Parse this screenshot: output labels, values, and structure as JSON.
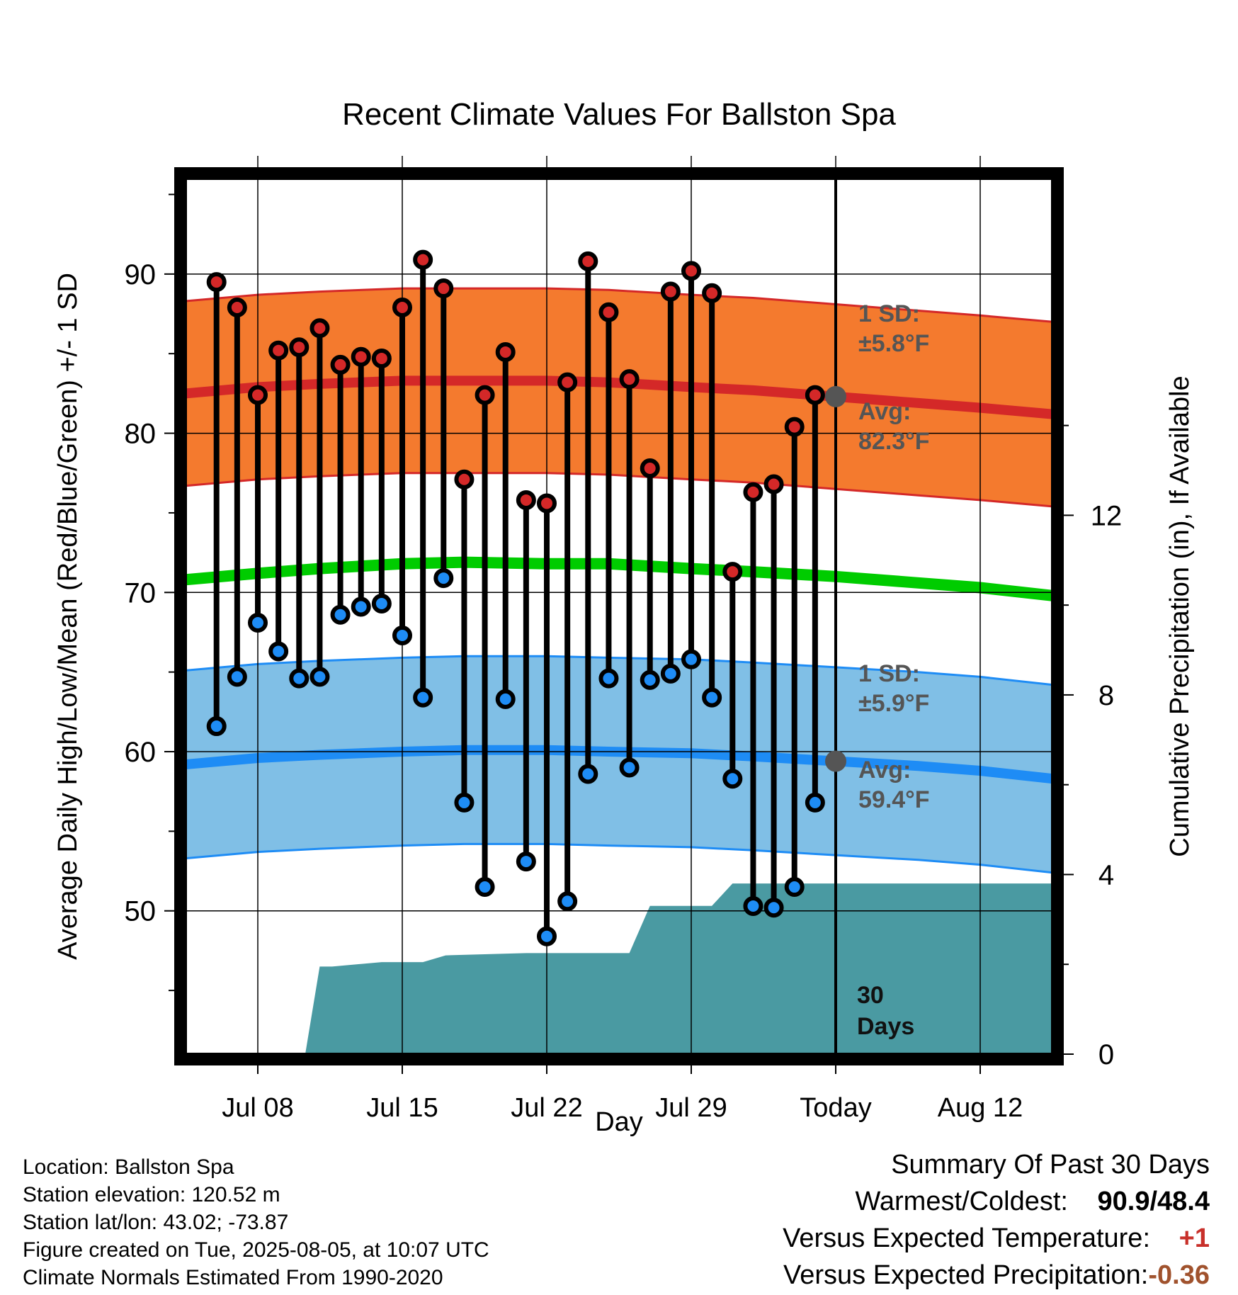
{
  "title": "Recent Climate Values For Ballston Spa",
  "y_axis_label": "Average Daily High/Low/Mean (Red/Blue/Green) +/- 1 SD",
  "y2_axis_label": "Cumulative Precipitation (in), If Available",
  "x_axis_label": "Day",
  "colors": {
    "high_band": "#f47a2e",
    "high_line": "#d42828",
    "low_band": "#80bfe6",
    "low_line": "#1e8cf5",
    "mean_line": "#00cc00",
    "precip": "#4a9aa2",
    "high_dot": "#d42828",
    "low_dot": "#1e8cf5",
    "today_dot": "#555555"
  },
  "annotations": {
    "high_sd": [
      "1 SD:",
      "±5.8°F"
    ],
    "high_avg": [
      "Avg:",
      "82.3°F"
    ],
    "low_sd": [
      "1 SD:",
      "±5.9°F"
    ],
    "low_avg": [
      "Avg:",
      "59.4°F"
    ],
    "window": [
      "30",
      "Days"
    ]
  },
  "info": {
    "location": "Location: Ballston Spa",
    "elevation": "Station elevation: 120.52 m",
    "latlon": "Station lat/lon: 43.02; -73.87",
    "created": "Figure created on Tue, 2025-08-05, at 10:07 UTC",
    "normals": "Climate Normals Estimated From 1990-2020"
  },
  "summary": {
    "heading": "Summary Of Past 30 Days",
    "warm_cold_label": "Warmest/Coldest:",
    "warm_cold_value": "90.9/48.4",
    "temp_label": "Versus Expected Temperature:",
    "temp_value": "+1",
    "precip_label": "Versus Expected Precipitation:",
    "precip_value": "-0.36"
  },
  "chart_data": {
    "type": "line",
    "x_range": [
      4.5,
      46.5
    ],
    "y_range": [
      41,
      96
    ],
    "y2_range": [
      0,
      19.5
    ],
    "x_ticks": [
      {
        "x": 8,
        "label": "Jul 08"
      },
      {
        "x": 15,
        "label": "Jul 15"
      },
      {
        "x": 22,
        "label": "Jul 22"
      },
      {
        "x": 29,
        "label": "Jul 29"
      },
      {
        "x": 36,
        "label": "Today"
      },
      {
        "x": 43,
        "label": "Aug 12"
      }
    ],
    "y_ticks": [
      50,
      60,
      70,
      80,
      90
    ],
    "y2_ticks": [
      0,
      4,
      8,
      12
    ],
    "today_x": 36,
    "normals": {
      "x": [
        4.5,
        8,
        11,
        15,
        18,
        22,
        25,
        29,
        32,
        36,
        40,
        43,
        46.5
      ],
      "high": [
        82.5,
        82.9,
        83.1,
        83.3,
        83.3,
        83.3,
        83.2,
        82.9,
        82.7,
        82.3,
        81.9,
        81.6,
        81.2
      ],
      "low": [
        59.2,
        59.6,
        59.8,
        60.0,
        60.1,
        60.1,
        60.0,
        59.9,
        59.7,
        59.4,
        59.1,
        58.8,
        58.3
      ],
      "mean": [
        70.8,
        71.2,
        71.5,
        71.8,
        71.9,
        71.8,
        71.8,
        71.5,
        71.3,
        71.0,
        70.6,
        70.3,
        69.8
      ],
      "high_sd": 5.8,
      "low_sd": 5.9
    },
    "days_x": [
      6,
      7,
      8,
      9,
      10,
      11,
      12,
      13,
      14,
      15,
      16,
      17,
      18,
      19,
      20,
      21,
      22,
      23,
      24,
      25,
      26,
      27,
      28,
      29,
      30,
      31,
      32,
      33,
      34,
      35
    ],
    "highs": [
      89.5,
      87.9,
      82.4,
      85.2,
      85.4,
      86.6,
      84.3,
      84.8,
      84.7,
      87.9,
      90.9,
      89.1,
      77.1,
      82.4,
      85.1,
      75.8,
      75.6,
      83.2,
      90.8,
      87.6,
      83.4,
      77.8,
      88.9,
      90.2,
      88.8,
      71.3,
      76.3,
      76.8,
      80.4,
      82.4
    ],
    "lows": [
      61.6,
      64.7,
      68.1,
      66.3,
      64.6,
      64.7,
      68.6,
      69.1,
      69.3,
      67.3,
      63.4,
      70.9,
      56.8,
      51.5,
      63.3,
      53.1,
      48.4,
      50.6,
      58.6,
      64.6,
      59.0,
      64.5,
      64.9,
      65.8,
      63.4,
      58.3,
      50.3,
      50.2,
      51.5,
      56.8
    ],
    "today_high": 82.3,
    "today_low": 59.4,
    "precip": {
      "x": [
        8.7,
        8.7,
        10.3,
        11.0,
        11.6,
        14.0,
        15.0,
        16.0,
        17.1,
        21.0,
        22.0,
        25.0,
        26.0,
        27.0,
        28.0,
        29.0,
        30.0,
        31.0,
        31.7,
        37.0,
        46.5
      ],
      "y": [
        0,
        0,
        0,
        1.95,
        1.95,
        2.05,
        2.05,
        2.05,
        2.2,
        2.25,
        2.25,
        2.25,
        2.25,
        3.3,
        3.3,
        3.3,
        3.3,
        3.8,
        3.8,
        3.8,
        3.8
      ]
    }
  }
}
